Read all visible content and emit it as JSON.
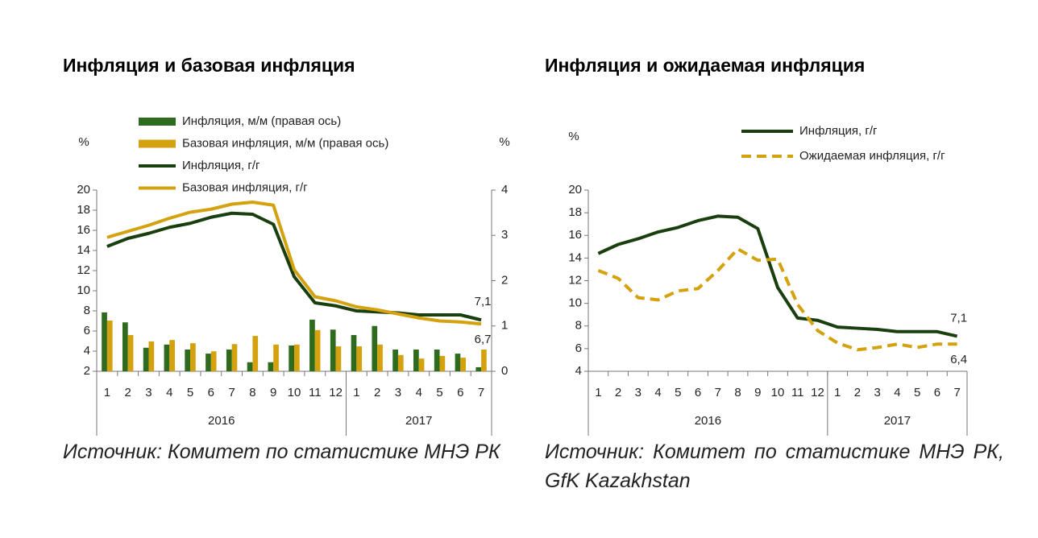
{
  "chart_data": [
    {
      "type": "combo",
      "title": "Инфляция и базовая инфляция",
      "y_label": "%",
      "y2_label": "%",
      "categories": [
        "1",
        "2",
        "3",
        "4",
        "5",
        "6",
        "7",
        "8",
        "9",
        "10",
        "11",
        "12",
        "1",
        "2",
        "3",
        "4",
        "5",
        "6",
        "7"
      ],
      "years": [
        "2016",
        "2017"
      ],
      "ylim": [
        2,
        20
      ],
      "yticks": [
        2,
        4,
        6,
        8,
        10,
        12,
        14,
        16,
        18,
        20
      ],
      "y2lim": [
        0,
        4
      ],
      "y2ticks": [
        0,
        1,
        2,
        3,
        4
      ],
      "series": [
        {
          "name": "Инфляция, м/м (правая ось)",
          "type": "bar",
          "axis": "y2",
          "color": "#2e6b1e",
          "values": [
            1.3,
            1.08,
            0.52,
            0.59,
            0.48,
            0.39,
            0.48,
            0.2,
            0.2,
            0.57,
            1.14,
            0.92,
            0.8,
            1.0,
            0.48,
            0.48,
            0.48,
            0.39,
            0.09
          ]
        },
        {
          "name": "Базовая инфляция, м/м (правая ось)",
          "type": "bar",
          "axis": "y2",
          "color": "#d4a20f",
          "values": [
            1.12,
            0.8,
            0.66,
            0.69,
            0.62,
            0.44,
            0.6,
            0.78,
            0.59,
            0.59,
            0.91,
            0.55,
            0.55,
            0.59,
            0.36,
            0.28,
            0.34,
            0.3,
            0.48
          ]
        },
        {
          "name": "Инфляция, г/г",
          "type": "line",
          "color": "#1a3f0e",
          "values": [
            14.4,
            15.2,
            15.7,
            16.3,
            16.7,
            17.3,
            17.7,
            17.6,
            16.6,
            11.4,
            8.8,
            8.5,
            8.0,
            7.9,
            7.8,
            7.6,
            7.6,
            7.6,
            7.1
          ],
          "value_labels": [
            null,
            null,
            null,
            null,
            null,
            null,
            null,
            null,
            null,
            null,
            null,
            null,
            null,
            null,
            null,
            null,
            null,
            null,
            "7,1"
          ]
        },
        {
          "name": "Базовая инфляция, г/г",
          "type": "line",
          "color": "#d4a20f",
          "values": [
            15.3,
            15.9,
            16.5,
            17.2,
            17.8,
            18.1,
            18.6,
            18.8,
            18.5,
            12.1,
            9.4,
            9.0,
            8.4,
            8.1,
            7.7,
            7.3,
            7.0,
            6.9,
            6.7
          ],
          "value_labels": [
            null,
            null,
            null,
            null,
            null,
            null,
            null,
            null,
            null,
            null,
            null,
            null,
            null,
            null,
            null,
            null,
            null,
            null,
            "6,7"
          ]
        }
      ],
      "source": "Источник: Комитет по статистике МНЭ РК"
    },
    {
      "type": "line",
      "title": "Инфляция и ожидаемая инфляция",
      "y_label": "%",
      "categories": [
        "1",
        "2",
        "3",
        "4",
        "5",
        "6",
        "7",
        "8",
        "9",
        "10",
        "11",
        "12",
        "1",
        "2",
        "3",
        "4",
        "5",
        "6",
        "7"
      ],
      "years": [
        "2016",
        "2017"
      ],
      "ylim": [
        4,
        20
      ],
      "yticks": [
        4,
        6,
        8,
        10,
        12,
        14,
        16,
        18,
        20
      ],
      "series": [
        {
          "name": "Инфляция, г/г",
          "type": "line",
          "color": "#1a3f0e",
          "linestyle": "solid",
          "values": [
            14.4,
            15.2,
            15.7,
            16.3,
            16.7,
            17.3,
            17.7,
            17.6,
            16.6,
            11.4,
            8.7,
            8.5,
            7.9,
            7.8,
            7.7,
            7.5,
            7.5,
            7.5,
            7.1
          ],
          "value_labels": [
            null,
            null,
            null,
            null,
            null,
            null,
            null,
            null,
            null,
            null,
            null,
            null,
            null,
            null,
            null,
            null,
            null,
            null,
            "7,1"
          ]
        },
        {
          "name": "Ожидаемая инфляция, г/г",
          "type": "line",
          "color": "#d4a20f",
          "linestyle": "dashed",
          "values": [
            12.9,
            12.2,
            10.5,
            10.3,
            11.1,
            11.3,
            12.9,
            14.8,
            13.8,
            13.9,
            9.9,
            7.6,
            6.5,
            5.9,
            6.1,
            6.4,
            6.1,
            6.4,
            6.4
          ],
          "value_labels": [
            null,
            null,
            null,
            null,
            null,
            null,
            null,
            null,
            null,
            null,
            null,
            null,
            null,
            null,
            null,
            null,
            null,
            null,
            "6,4"
          ]
        }
      ],
      "source": "Источник: Комитет по статистике МНЭ РК, GfK Kazakhstan"
    }
  ]
}
